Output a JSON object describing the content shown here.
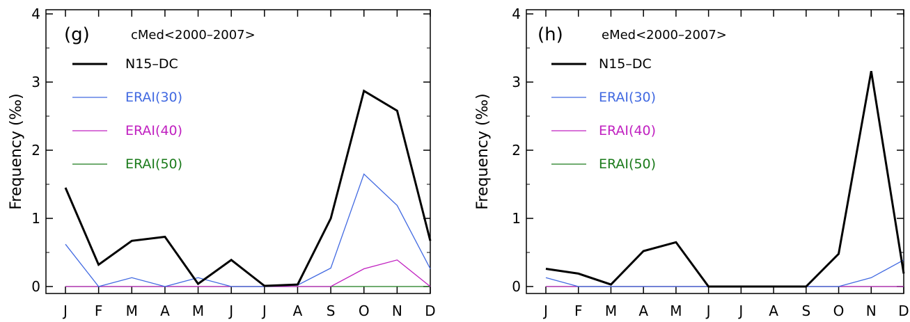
{
  "chart_data": [
    {
      "type": "line",
      "panel_label": "(g)",
      "title": "cMed<2000–2007>",
      "xlabel": "",
      "ylabel": "Frequency (‰)",
      "categories": [
        "J",
        "F",
        "M",
        "A",
        "M",
        "J",
        "J",
        "A",
        "S",
        "O",
        "N",
        "D"
      ],
      "ylim": [
        0,
        4
      ],
      "yticks": [
        "0",
        "1",
        "2",
        "3",
        "4"
      ],
      "grid": false,
      "legend_position": "top-left",
      "series": [
        {
          "name": "N15–DC",
          "color": "#000000",
          "width": 3,
          "values": [
            1.45,
            0.32,
            0.67,
            0.73,
            0.04,
            0.39,
            0.01,
            0.03,
            1.0,
            2.87,
            2.58,
            0.67
          ]
        },
        {
          "name": "ERAI(30)",
          "color": "#4169e1",
          "width": 1.3,
          "values": [
            0.62,
            0.0,
            0.13,
            0.0,
            0.13,
            0.0,
            0.0,
            0.02,
            0.27,
            1.65,
            1.19,
            0.26
          ]
        },
        {
          "name": "ERAI(40)",
          "color": "#c020c0",
          "width": 1.3,
          "values": [
            0,
            0,
            0,
            0,
            0,
            0,
            0,
            0,
            0,
            0.26,
            0.39,
            0.0
          ]
        },
        {
          "name": "ERAI(50)",
          "color": "#1a7a1a",
          "width": 1.3,
          "values": [
            0,
            0,
            0,
            0,
            0,
            0,
            0,
            0,
            0,
            0,
            0,
            0
          ]
        }
      ]
    },
    {
      "type": "line",
      "panel_label": "(h)",
      "title": "eMed<2000–2007>",
      "xlabel": "",
      "ylabel": "Frequency (‰)",
      "categories": [
        "J",
        "F",
        "M",
        "A",
        "M",
        "J",
        "J",
        "A",
        "S",
        "O",
        "N",
        "D"
      ],
      "ylim": [
        0,
        4
      ],
      "yticks": [
        "0",
        "1",
        "2",
        "3",
        "4"
      ],
      "grid": false,
      "legend_position": "top-left",
      "series": [
        {
          "name": "N15–DC",
          "color": "#000000",
          "width": 3,
          "values": [
            0.26,
            0.19,
            0.03,
            0.52,
            0.65,
            0.0,
            0.0,
            0.0,
            0.0,
            0.48,
            3.16,
            0.19
          ]
        },
        {
          "name": "ERAI(30)",
          "color": "#4169e1",
          "width": 1.3,
          "values": [
            0.13,
            0.0,
            0,
            0,
            0,
            0,
            0,
            0,
            0,
            0,
            0.13,
            0.39
          ]
        },
        {
          "name": "ERAI(40)",
          "color": "#c020c0",
          "width": 1.3,
          "values": [
            0,
            0,
            0,
            0,
            0,
            0,
            0,
            0,
            0,
            0,
            0,
            0
          ]
        },
        {
          "name": "ERAI(50)",
          "color": "#1a7a1a",
          "width": 1.3,
          "values": [
            0,
            0,
            0,
            0,
            0,
            0,
            0,
            0,
            0,
            0,
            0,
            0
          ]
        }
      ]
    }
  ]
}
